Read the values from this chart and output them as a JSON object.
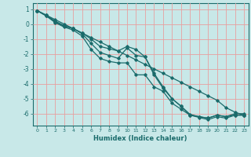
{
  "xlabel": "Humidex (Indice chaleur)",
  "background_color": "#c8e8e8",
  "grid_color": "#e8a0a0",
  "line_color": "#1a6b6b",
  "xlim": [
    -0.5,
    23.5
  ],
  "ylim": [
    -6.8,
    1.4
  ],
  "yticks": [
    1,
    0,
    -1,
    -2,
    -3,
    -4,
    -5,
    -6
  ],
  "xticks": [
    0,
    1,
    2,
    3,
    4,
    5,
    6,
    7,
    8,
    9,
    10,
    11,
    12,
    13,
    14,
    15,
    16,
    17,
    18,
    19,
    20,
    21,
    22,
    23
  ],
  "lines": [
    {
      "x": [
        0,
        1,
        2,
        3,
        4,
        5,
        6,
        7,
        8,
        9,
        10,
        11,
        12,
        13,
        14,
        15,
        16,
        17,
        18,
        19,
        20,
        21,
        22,
        23
      ],
      "y": [
        0.9,
        0.6,
        0.3,
        0.0,
        -0.3,
        -0.6,
        -0.9,
        -1.2,
        -1.5,
        -1.8,
        -2.1,
        -2.4,
        -2.7,
        -3.0,
        -3.3,
        -3.6,
        -3.9,
        -4.2,
        -4.5,
        -4.8,
        -5.1,
        -5.6,
        -5.9,
        -6.1
      ]
    },
    {
      "x": [
        0,
        1,
        2,
        3,
        4,
        5,
        6,
        7,
        8,
        9,
        10,
        11,
        12,
        13,
        14,
        15,
        16,
        17,
        18,
        19,
        20,
        21,
        22,
        23
      ],
      "y": [
        0.9,
        0.6,
        0.2,
        -0.1,
        -0.3,
        -0.6,
        -1.0,
        -1.5,
        -1.65,
        -1.8,
        -1.5,
        -1.7,
        -2.2,
        -3.4,
        -4.3,
        -5.0,
        -5.5,
        -6.1,
        -6.2,
        -6.3,
        -6.1,
        -6.2,
        -6.1,
        -6.1
      ]
    },
    {
      "x": [
        0,
        1,
        2,
        3,
        4,
        5,
        6,
        7,
        8,
        9,
        10,
        11,
        12,
        13,
        14,
        15,
        16,
        17,
        18,
        19,
        20,
        21,
        22,
        23
      ],
      "y": [
        0.9,
        0.55,
        0.15,
        -0.15,
        -0.3,
        -0.65,
        -1.3,
        -1.9,
        -2.1,
        -2.3,
        -1.6,
        -2.1,
        -2.2,
        -3.3,
        -4.2,
        -5.0,
        -5.5,
        -6.05,
        -6.2,
        -6.3,
        -6.1,
        -6.2,
        -6.0,
        -6.0
      ]
    },
    {
      "x": [
        0,
        1,
        2,
        3,
        4,
        5,
        6,
        7,
        8,
        9,
        10,
        11,
        12,
        13,
        14,
        15,
        16,
        17,
        18,
        19,
        20,
        21,
        22,
        23
      ],
      "y": [
        0.9,
        0.55,
        0.1,
        -0.2,
        -0.4,
        -0.8,
        -1.7,
        -2.3,
        -2.5,
        -2.6,
        -2.6,
        -3.4,
        -3.4,
        -4.2,
        -4.5,
        -5.3,
        -5.7,
        -6.1,
        -6.25,
        -6.4,
        -6.2,
        -6.3,
        -6.1,
        -6.1
      ]
    }
  ]
}
